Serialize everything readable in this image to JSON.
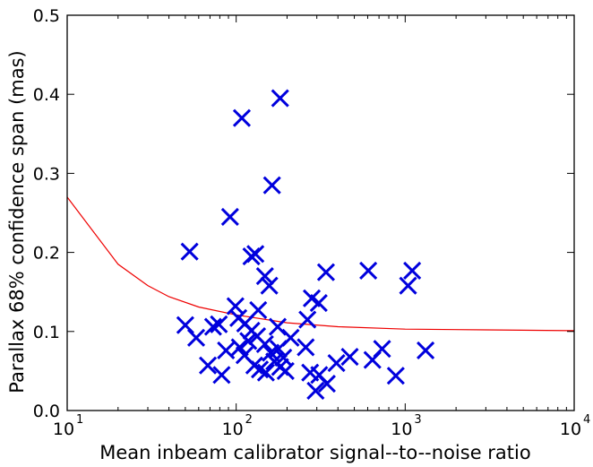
{
  "chart_data": {
    "type": "scatter",
    "title": "",
    "xlabel": "Mean inbeam calibrator signal--to--noise ratio",
    "ylabel": "Parallax 68% confidence span (mas)",
    "xscale": "log",
    "xlim": [
      10,
      10000
    ],
    "ylim": [
      0.0,
      0.5
    ],
    "grid": false,
    "legend": "none",
    "x_ticks": [
      {
        "value": 10,
        "base": "10",
        "exp": "1"
      },
      {
        "value": 100,
        "base": "10",
        "exp": "2"
      },
      {
        "value": 1000,
        "base": "10",
        "exp": "3"
      },
      {
        "value": 10000,
        "base": "10",
        "exp": "4"
      }
    ],
    "y_ticks": [
      {
        "value": 0.0,
        "label": "0.0"
      },
      {
        "value": 0.1,
        "label": "0.1"
      },
      {
        "value": 0.2,
        "label": "0.2"
      },
      {
        "value": 0.3,
        "label": "0.3"
      },
      {
        "value": 0.4,
        "label": "0.4"
      },
      {
        "value": 0.5,
        "label": "0.5"
      }
    ],
    "series": [
      {
        "marker": "x",
        "color": "#0000dd",
        "points": [
          [
            182,
            0.395
          ],
          [
            108,
            0.37
          ],
          [
            163,
            0.285
          ],
          [
            92,
            0.245
          ],
          [
            53,
            0.201
          ],
          [
            123,
            0.195
          ],
          [
            130,
            0.198
          ],
          [
            148,
            0.17
          ],
          [
            157,
            0.158
          ],
          [
            340,
            0.175
          ],
          [
            605,
            0.177
          ],
          [
            1100,
            0.177
          ],
          [
            1040,
            0.158
          ],
          [
            280,
            0.142
          ],
          [
            99,
            0.132
          ],
          [
            308,
            0.136
          ],
          [
            135,
            0.127
          ],
          [
            50,
            0.108
          ],
          [
            58,
            0.092
          ],
          [
            73,
            0.106
          ],
          [
            79,
            0.109
          ],
          [
            103,
            0.117
          ],
          [
            113,
            0.11
          ],
          [
            123,
            0.101
          ],
          [
            133,
            0.094
          ],
          [
            176,
            0.106
          ],
          [
            210,
            0.092
          ],
          [
            264,
            0.115
          ],
          [
            87,
            0.076
          ],
          [
            105,
            0.08
          ],
          [
            118,
            0.088
          ],
          [
            148,
            0.084
          ],
          [
            160,
            0.073
          ],
          [
            178,
            0.078
          ],
          [
            190,
            0.067
          ],
          [
            258,
            0.08
          ],
          [
            68,
            0.057
          ],
          [
            82,
            0.045
          ],
          [
            128,
            0.057
          ],
          [
            138,
            0.052
          ],
          [
            150,
            0.048
          ],
          [
            168,
            0.062
          ],
          [
            182,
            0.055
          ],
          [
            196,
            0.05
          ],
          [
            274,
            0.048
          ],
          [
            295,
            0.025
          ],
          [
            344,
            0.034
          ],
          [
            392,
            0.06
          ],
          [
            470,
            0.068
          ],
          [
            640,
            0.064
          ],
          [
            730,
            0.078
          ],
          [
            880,
            0.044
          ],
          [
            1320,
            0.076
          ],
          [
            112,
            0.07
          ],
          [
            310,
            0.045
          ]
        ]
      },
      {
        "marker": "line",
        "color": "#ee0000",
        "points": [
          [
            10,
            0.27
          ],
          [
            20,
            0.185
          ],
          [
            30,
            0.158
          ],
          [
            40,
            0.144
          ],
          [
            60,
            0.131
          ],
          [
            100,
            0.121
          ],
          [
            200,
            0.111
          ],
          [
            400,
            0.106
          ],
          [
            1000,
            0.103
          ],
          [
            3000,
            0.102
          ],
          [
            10000,
            0.101
          ]
        ]
      }
    ]
  }
}
